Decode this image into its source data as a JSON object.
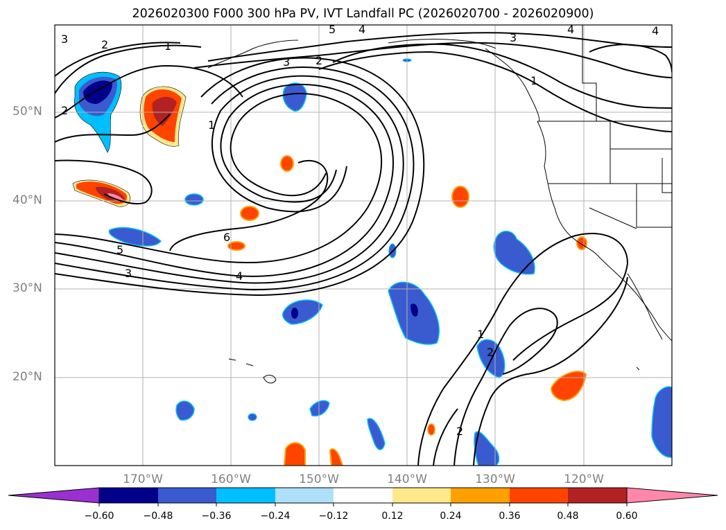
{
  "title": "2026020300 F000 300 hPa PV, IVT Landfall PC (2026020700 - 2026020900)",
  "axes": {
    "lat_labels": [
      "50°N",
      "40°N",
      "30°N",
      "20°N"
    ],
    "lon_labels": [
      "170°W",
      "160°W",
      "150°W",
      "140°W",
      "130°W",
      "120°W"
    ]
  },
  "colorbar": {
    "ticks": [
      "−0.60",
      "−0.48",
      "−0.36",
      "−0.24",
      "−0.12",
      "0.12",
      "0.24",
      "0.36",
      "0.48",
      "0.60"
    ],
    "colors": [
      "#9b30d0",
      "#00008b",
      "#3a5bd0",
      "#00bfff",
      "#afe0fa",
      "#ffffff",
      "#ffe88a",
      "#ffa000",
      "#ff4400",
      "#b22222",
      "#ff88aa"
    ]
  },
  "contour_labels": [
    "3",
    "2",
    "1",
    "5",
    "4",
    "3",
    "2",
    "4",
    "4",
    "3",
    "1",
    "2",
    "1",
    "6",
    "5",
    "3",
    "4",
    "1",
    "2",
    "2"
  ],
  "legend_colors": {
    "contour": "#000000",
    "coast": "#000000",
    "grid": "#b0b0b0"
  }
}
